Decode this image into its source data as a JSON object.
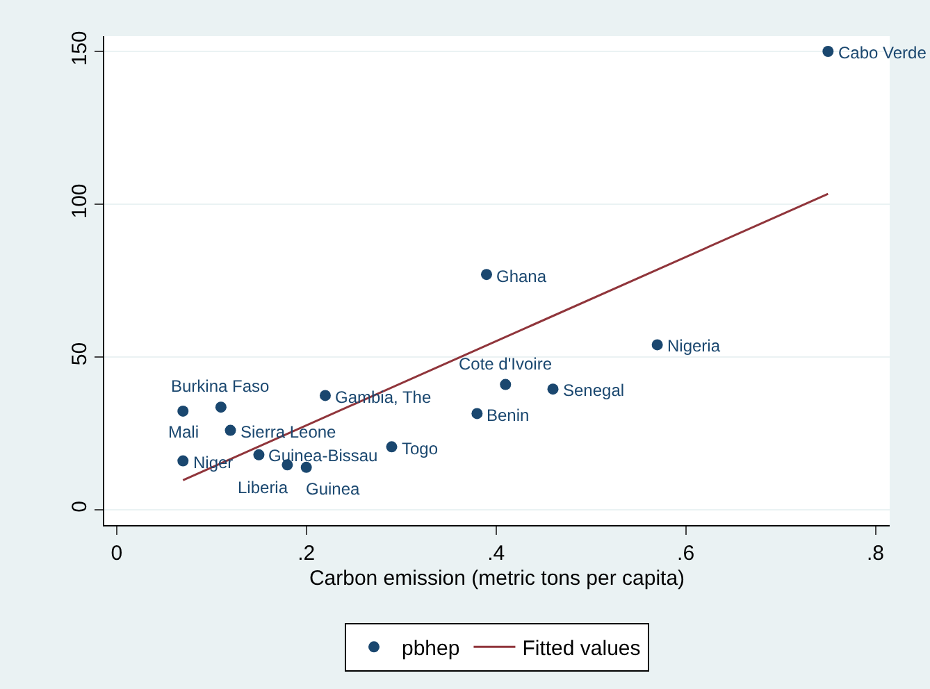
{
  "chart_data": {
    "type": "scatter",
    "xlabel": "Carbon emission (metric tons per capita)",
    "xlim": [
      -0.013,
      0.815
    ],
    "xticks": [
      0,
      {
        "value": 0.2,
        "label": ".2"
      },
      {
        "value": 0.4,
        "label": ".4"
      },
      {
        "value": 0.6,
        "label": ".6"
      },
      {
        "value": 0.8,
        "label": ".8"
      }
    ],
    "ylim": [
      -5,
      155
    ],
    "yticks": [
      0,
      50,
      100,
      150
    ],
    "grid": "y",
    "legend": "bottom",
    "marker": "circle",
    "series": [
      {
        "name": "pbhep",
        "color": "#1a476f",
        "x": [
          0.75,
          0.39,
          0.57,
          0.41,
          0.46,
          0.38,
          0.29,
          0.22,
          0.07,
          0.11,
          0.12,
          0.07,
          0.15,
          0.18,
          0.2
        ],
        "values": [
          150,
          77,
          54,
          41,
          39.5,
          31.5,
          20.6,
          37.4,
          32.3,
          33.6,
          26,
          16,
          18,
          14.7,
          13.9
        ]
      },
      {
        "name": "Fitted values",
        "type": "line",
        "color": "#90353b",
        "marker": "none",
        "x": [
          0.07,
          0.75
        ],
        "values": [
          9.7,
          103.4
        ]
      }
    ],
    "annotations": [
      {
        "text": "Cabo Verde",
        "x": 0.75,
        "y": 150
      },
      {
        "text": "Ghana",
        "x": 0.39,
        "y": 77
      },
      {
        "text": "Nigeria",
        "x": 0.57,
        "y": 54
      },
      {
        "text": "Cote d'Ivoire",
        "x": 0.41,
        "y": 41
      },
      {
        "text": "Senegal",
        "x": 0.46,
        "y": 39.5
      },
      {
        "text": "Benin",
        "x": 0.38,
        "y": 31.5
      },
      {
        "text": "Togo",
        "x": 0.29,
        "y": 20.6
      },
      {
        "text": "Gambia, The",
        "x": 0.22,
        "y": 37.4
      },
      {
        "text": "Mali",
        "x": 0.07,
        "y": 32.3
      },
      {
        "text": "Burkina Faso",
        "x": 0.11,
        "y": 33.6
      },
      {
        "text": "Sierra Leone",
        "x": 0.12,
        "y": 26
      },
      {
        "text": "Niger",
        "x": 0.07,
        "y": 16
      },
      {
        "text": "Guinea-Bissau",
        "x": 0.15,
        "y": 18
      },
      {
        "text": "Liberia",
        "x": 0.18,
        "y": 14.7
      },
      {
        "text": "Guinea",
        "x": 0.2,
        "y": 13.9
      }
    ]
  }
}
